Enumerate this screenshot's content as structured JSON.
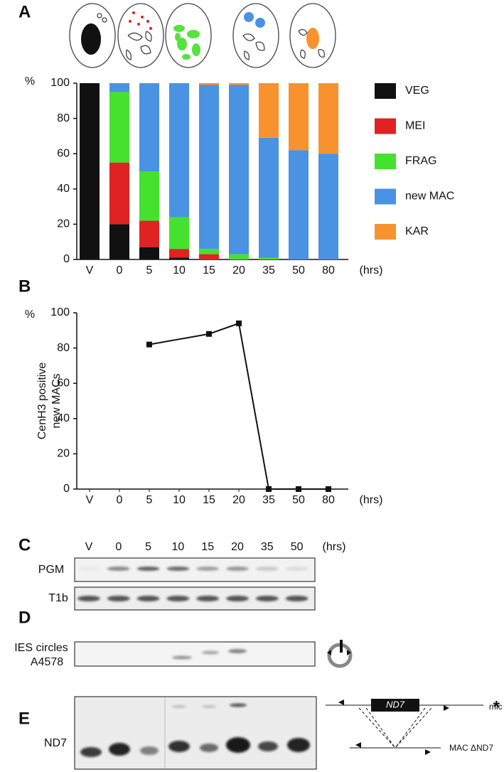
{
  "chart_data": [
    {
      "type": "stacked-bar",
      "y_unit": "%",
      "x_unit": "(hrs)",
      "categories": [
        "V",
        "0",
        "5",
        "10",
        "15",
        "20",
        "35",
        "50",
        "80"
      ],
      "series": [
        {
          "name": "VEG",
          "color": "#111111",
          "values": [
            100,
            20,
            7,
            1,
            0,
            0,
            0,
            0,
            0
          ]
        },
        {
          "name": "MEI",
          "color": "#e02222",
          "values": [
            0,
            35,
            15,
            5,
            3,
            0,
            0,
            0,
            0
          ]
        },
        {
          "name": "FRAG",
          "color": "#44e22e",
          "values": [
            0,
            40,
            28,
            18,
            3,
            3,
            1,
            0,
            0
          ]
        },
        {
          "name": "new MAC",
          "color": "#4a92e2",
          "values": [
            0,
            5,
            50,
            76,
            93,
            96,
            68,
            62,
            60
          ]
        },
        {
          "name": "KAR",
          "color": "#f7922e",
          "values": [
            0,
            0,
            0,
            0,
            1,
            1,
            31,
            38,
            40
          ]
        }
      ],
      "ylim": [
        0,
        100
      ],
      "yticks": [
        0,
        20,
        40,
        60,
        80,
        100
      ],
      "grid": false,
      "legend": "right"
    },
    {
      "type": "line",
      "y_unit": "%",
      "x_unit": "(hrs)",
      "y_label": [
        "CenH3 positive",
        "new MACs"
      ],
      "categories": [
        "V",
        "0",
        "5",
        "10",
        "15",
        "20",
        "35",
        "50",
        "80"
      ],
      "values": [
        null,
        null,
        82,
        null,
        88,
        94,
        0,
        0,
        0
      ],
      "color": "#111111",
      "marker": "square",
      "ylim": [
        0,
        100
      ],
      "yticks": [
        0,
        20,
        40,
        60,
        80,
        100
      ],
      "grid": false
    }
  ],
  "panel_labels": [
    "A",
    "B",
    "C",
    "D",
    "E"
  ],
  "gel_c": {
    "lanes": [
      "V",
      "0",
      "5",
      "10",
      "15",
      "20",
      "35",
      "50"
    ],
    "unit": "(hrs)",
    "rows": [
      "PGM",
      "T1b"
    ]
  },
  "gel_d": {
    "label": [
      "IES circles",
      "A4578"
    ]
  },
  "gel_e": {
    "label": "ND7",
    "gene": "ND7",
    "mic": "mic",
    "star": "*",
    "mac": "MAC ΔND7"
  }
}
